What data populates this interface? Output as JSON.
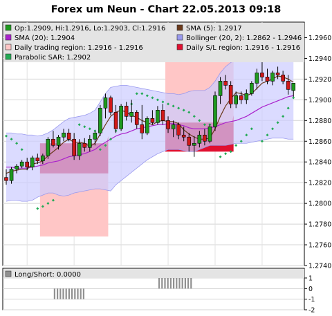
{
  "window": {
    "title": "Forex um Neun - Chart 22.05.2013 09:18"
  },
  "colors": {
    "candle_up": "#1f9a1f",
    "candle_down": "#d01818",
    "sma5": "#6b3a1c",
    "sma20": "#aa22cc",
    "bollinger_band": "#ccccff",
    "bollinger_edge": "#9999ee",
    "trading_region": "#ffc6c6",
    "sl_region": "#e01030",
    "sar": "#22aa55",
    "longshort": "#909090"
  },
  "chart_data": [
    {
      "type": "candlestick",
      "title": "Forex um Neun - Chart 22.05.2013 09:18",
      "ylim": [
        1.274,
        1.2975
      ],
      "y_ticks": [
        "1.2740",
        "1.2760",
        "1.2780",
        "1.2800",
        "1.2820",
        "1.2840",
        "1.2860",
        "1.2880",
        "1.2900",
        "1.2920",
        "1.2940",
        "1.2960"
      ],
      "grid": true,
      "legend": [
        {
          "label": "Op:1.2909, Hi:1.2916, Lo:1.2903, Cl:1.2916",
          "swatch": "candle_up",
          "style": "box"
        },
        {
          "label": "SMA (5): 1.2917",
          "swatch": "sma5",
          "style": "box"
        },
        {
          "label": "SMA (20): 1.2904",
          "swatch": "sma20",
          "style": "box"
        },
        {
          "label": "Bollinger (20, 2): 1.2862 - 1.2946",
          "swatch": "bollinger_edge",
          "style": "box"
        },
        {
          "label": "Daily trading region: 1.2916 - 1.2916",
          "swatch": "trading_region",
          "style": "box"
        },
        {
          "label": "Daily S/L region: 1.2916 - 1.2916",
          "swatch": "sl_region",
          "style": "box"
        },
        {
          "label": "Parabolic SAR: 1.2902",
          "swatch": "sar",
          "style": "box"
        }
      ],
      "ohlc": [
        [
          1.2825,
          1.2833,
          1.2818,
          1.2822
        ],
        [
          1.2822,
          1.2835,
          1.2819,
          1.2833
        ],
        [
          1.2833,
          1.2838,
          1.2829,
          1.2836
        ],
        [
          1.2836,
          1.2842,
          1.2834,
          1.284
        ],
        [
          1.284,
          1.2844,
          1.2832,
          1.2835
        ],
        [
          1.2835,
          1.2846,
          1.2832,
          1.2844
        ],
        [
          1.2844,
          1.2848,
          1.2838,
          1.2841
        ],
        [
          1.2841,
          1.2848,
          1.2838,
          1.2846
        ],
        [
          1.2846,
          1.2864,
          1.2843,
          1.2862
        ],
        [
          1.2862,
          1.287,
          1.2854,
          1.2856
        ],
        [
          1.2856,
          1.2866,
          1.2852,
          1.2864
        ],
        [
          1.2864,
          1.2872,
          1.286,
          1.2868
        ],
        [
          1.2868,
          1.2872,
          1.286,
          1.2862
        ],
        [
          1.2862,
          1.2868,
          1.2842,
          1.2846
        ],
        [
          1.2846,
          1.2862,
          1.2842,
          1.2858
        ],
        [
          1.2858,
          1.2863,
          1.285,
          1.2854
        ],
        [
          1.2854,
          1.2866,
          1.285,
          1.2862
        ],
        [
          1.2862,
          1.287,
          1.2856,
          1.2868
        ],
        [
          1.2868,
          1.2895,
          1.2865,
          1.2892
        ],
        [
          1.2892,
          1.2906,
          1.2882,
          1.2902
        ],
        [
          1.2902,
          1.2904,
          1.2885,
          1.2888
        ],
        [
          1.2888,
          1.2895,
          1.2868,
          1.2872
        ],
        [
          1.2872,
          1.2896,
          1.287,
          1.2894
        ],
        [
          1.2894,
          1.2898,
          1.288,
          1.2884
        ],
        [
          1.2884,
          1.29,
          1.2878,
          1.2888
        ],
        [
          1.2888,
          1.289,
          1.2872,
          1.2876
        ],
        [
          1.2876,
          1.2895,
          1.2862,
          1.2868
        ],
        [
          1.2868,
          1.2884,
          1.2866,
          1.2882
        ],
        [
          1.2882,
          1.289,
          1.2876,
          1.2878
        ],
        [
          1.2878,
          1.2894,
          1.2876,
          1.289
        ],
        [
          1.289,
          1.2896,
          1.2876,
          1.288
        ],
        [
          1.288,
          1.2884,
          1.2868,
          1.2872
        ],
        [
          1.2872,
          1.288,
          1.2864,
          1.2876
        ],
        [
          1.2876,
          1.2878,
          1.2862,
          1.2866
        ],
        [
          1.2866,
          1.2874,
          1.286,
          1.2864
        ],
        [
          1.2864,
          1.2868,
          1.285,
          1.2856
        ],
        [
          1.2856,
          1.2865,
          1.2845,
          1.2858
        ],
        [
          1.2858,
          1.287,
          1.2854,
          1.2866
        ],
        [
          1.2866,
          1.2872,
          1.2856,
          1.286
        ],
        [
          1.286,
          1.2876,
          1.2858,
          1.2874
        ],
        [
          1.2874,
          1.2908,
          1.287,
          1.2904
        ],
        [
          1.2904,
          1.2922,
          1.2896,
          1.2918
        ],
        [
          1.2918,
          1.2924,
          1.291,
          1.2914
        ],
        [
          1.2914,
          1.2918,
          1.2892,
          1.2896
        ],
        [
          1.2896,
          1.2908,
          1.2892,
          1.2904
        ],
        [
          1.2904,
          1.2908,
          1.2896,
          1.29
        ],
        [
          1.29,
          1.291,
          1.2896,
          1.2906
        ],
        [
          1.2906,
          1.2918,
          1.2904,
          1.2916
        ],
        [
          1.2916,
          1.293,
          1.291,
          1.2926
        ],
        [
          1.2926,
          1.2938,
          1.2918,
          1.2922
        ],
        [
          1.2922,
          1.293,
          1.2915,
          1.2918
        ],
        [
          1.2918,
          1.2928,
          1.2914,
          1.2926
        ],
        [
          1.2926,
          1.2932,
          1.292,
          1.2924
        ],
        [
          1.2924,
          1.2928,
          1.2915,
          1.2918
        ],
        [
          1.2918,
          1.2924,
          1.2905,
          1.291
        ],
        [
          1.2909,
          1.2916,
          1.2903,
          1.2916
        ]
      ],
      "sma5": [
        1.2829,
        1.2831,
        1.2832,
        1.2833,
        1.2833,
        1.2838,
        1.2839,
        1.2841,
        1.2846,
        1.285,
        1.2854,
        1.2859,
        1.2862,
        1.2859,
        1.2859,
        1.2858,
        1.2855,
        1.2858,
        1.2867,
        1.2876,
        1.2884,
        1.2888,
        1.289,
        1.2888,
        1.2885,
        1.2883,
        1.288,
        1.2878,
        1.2876,
        1.2879,
        1.288,
        1.2879,
        1.2879,
        1.2877,
        1.2871,
        1.2867,
        1.2864,
        1.2862,
        1.2862,
        1.2863,
        1.2872,
        1.2884,
        1.2894,
        1.2901,
        1.2907,
        1.2906,
        1.2904,
        1.2906,
        1.2911,
        1.2916,
        1.2918,
        1.292,
        1.2923,
        1.2922,
        1.292,
        1.2917
      ],
      "sma20": [
        1.2835,
        1.2835,
        1.2834,
        1.2834,
        1.2834,
        1.2835,
        1.2836,
        1.2837,
        1.2839,
        1.284,
        1.2841,
        1.2843,
        1.2845,
        1.2846,
        1.2847,
        1.2848,
        1.285,
        1.2852,
        1.2856,
        1.2859,
        1.2862,
        1.2865,
        1.2867,
        1.2868,
        1.287,
        1.2872,
        1.2873,
        1.2874,
        1.2875,
        1.2876,
        1.2876,
        1.2877,
        1.2877,
        1.2876,
        1.2875,
        1.2873,
        1.2872,
        1.2872,
        1.2872,
        1.2873,
        1.2874,
        1.2876,
        1.2878,
        1.2879,
        1.288,
        1.2882,
        1.2884,
        1.2887,
        1.289,
        1.2893,
        1.2895,
        1.2897,
        1.2899,
        1.2901,
        1.2903,
        1.2904
      ],
      "boll_upper": [
        1.2868,
        1.2868,
        1.2867,
        1.2867,
        1.2866,
        1.2866,
        1.2865,
        1.2866,
        1.2868,
        1.2871,
        1.2875,
        1.2879,
        1.2882,
        1.2883,
        1.2884,
        1.2885,
        1.2887,
        1.289,
        1.2898,
        1.2906,
        1.2912,
        1.2913,
        1.2914,
        1.2914,
        1.2913,
        1.2912,
        1.2911,
        1.291,
        1.2909,
        1.2908,
        1.2907,
        1.2906,
        1.2906,
        1.2905,
        1.2906,
        1.2908,
        1.2909,
        1.2909,
        1.2909,
        1.2912,
        1.2918,
        1.2926,
        1.2932,
        1.2936,
        1.2938,
        1.294,
        1.2942,
        1.2944,
        1.2946,
        1.2947,
        1.2948,
        1.2948,
        1.2947,
        1.2946,
        1.2946,
        1.2946
      ],
      "boll_lower": [
        1.2802,
        1.2803,
        1.2803,
        1.2802,
        1.2802,
        1.2803,
        1.2806,
        1.2808,
        1.281,
        1.281,
        1.2808,
        1.2807,
        1.2808,
        1.281,
        1.2811,
        1.2812,
        1.2813,
        1.2814,
        1.2814,
        1.2813,
        1.2812,
        1.2818,
        1.2822,
        1.2826,
        1.283,
        1.2834,
        1.2838,
        1.2842,
        1.2845,
        1.2848,
        1.285,
        1.2852,
        1.2852,
        1.2852,
        1.2851,
        1.285,
        1.285,
        1.2852,
        1.2854,
        1.2856,
        1.2856,
        1.2856,
        1.2856,
        1.2857,
        1.2858,
        1.2858,
        1.2858,
        1.2859,
        1.286,
        1.2861,
        1.2862,
        1.2863,
        1.2863,
        1.2863,
        1.2862,
        1.2862
      ],
      "sar": [
        1.2865,
        1.2862,
        1.2858,
        1.2852,
        null,
        null,
        1.2795,
        1.2797,
        1.28,
        1.2803,
        null,
        null,
        null,
        null,
        1.2876,
        1.2874,
        1.2872,
        1.287,
        1.2852,
        1.2856,
        1.2862,
        1.287,
        1.2878,
        1.2886,
        1.2896,
        1.2906,
        1.2906,
        1.2904,
        1.2902,
        1.29,
        1.2898,
        1.2896,
        1.2894,
        1.2892,
        1.289,
        1.2888,
        1.2884,
        1.288,
        1.2876,
        1.2876,
        null,
        1.2845,
        1.2848,
        1.285,
        1.2856,
        1.286,
        1.2866,
        1.2872,
        null,
        1.286,
        1.2866,
        1.2872,
        1.2878,
        1.2884,
        1.2892,
        1.2902
      ],
      "trading_regions": [
        {
          "from": 7,
          "to": 19,
          "low": 1.2768,
          "high": 1.2858
        },
        {
          "from": 31,
          "to": 43,
          "low": 1.285,
          "high": 1.2946
        }
      ],
      "sl_regions": [
        {
          "from": 7,
          "to": 19,
          "low": 1.2829,
          "high": 1.2858
        },
        {
          "from": 31,
          "to": 43,
          "low": 1.285,
          "high": 1.2878
        }
      ]
    },
    {
      "type": "bar",
      "title": "",
      "legend": [
        {
          "label": "Long/Short: 0.0000",
          "swatch": "longshort",
          "style": "box"
        }
      ],
      "ylim": [
        -2,
        1
      ],
      "y_ticks": [
        "1",
        "0",
        "-1",
        "-2"
      ],
      "y_tick_values": [
        1,
        0,
        -1,
        -2
      ],
      "values": [
        0,
        0,
        0,
        0,
        0,
        0,
        0,
        0,
        0,
        -1,
        -1,
        -1,
        -1,
        -1,
        -1,
        -1,
        -1,
        -1,
        -1,
        -1,
        0,
        0,
        0,
        0,
        0,
        0,
        0,
        0,
        0,
        0,
        0,
        0,
        0,
        0,
        0,
        0,
        0,
        0,
        0,
        0,
        0,
        0,
        0,
        0,
        0,
        1,
        1,
        1,
        1,
        1,
        1,
        1,
        1,
        1,
        1,
        1,
        1,
        0,
        0,
        0,
        0,
        0,
        0,
        0,
        0,
        0,
        0,
        0,
        0,
        0,
        0,
        0,
        0,
        0,
        0,
        0,
        0
      ]
    }
  ]
}
